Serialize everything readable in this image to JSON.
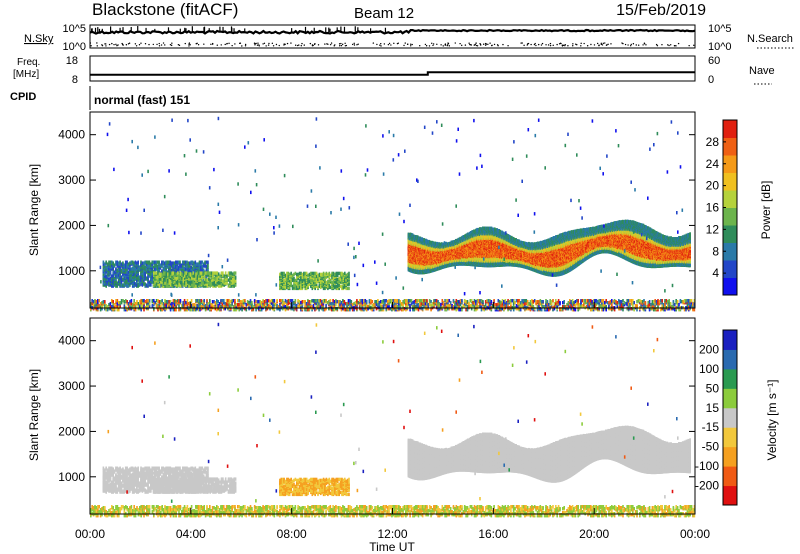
{
  "header": {
    "station": "Blackstone (fitACF)",
    "beam": "Beam 12",
    "date": "15/Feb/2019"
  },
  "status_panels": {
    "nsky_label": "N.Sky",
    "nsearch_label": "N.Search",
    "freq_label_line1": "Freq.",
    "freq_label_line2": "[MHz]",
    "nave_label": "Nave",
    "cpid_label": "CPID",
    "cpid_value": "normal (fast) 151",
    "noise_ticks_left": [
      "10^5",
      "10^0"
    ],
    "noise_ticks_right": [
      "10^5",
      "10^0"
    ],
    "freq_ticks": [
      "18",
      "8"
    ],
    "nave_ticks": [
      "60",
      "0"
    ],
    "freq_step_time_hours": 13.4,
    "freq_mhz": 10.5,
    "freq_after_mhz": 11.5
  },
  "chart_data": [
    {
      "type": "heatmap",
      "parameter": "power",
      "ylabel": "Slant Range [km]",
      "yticks": [
        "1000",
        "2000",
        "3000",
        "4000"
      ],
      "ylim": [
        180,
        4500
      ],
      "xlim": [
        0,
        24
      ],
      "colorbar": {
        "label": "Power [dB]",
        "ticks": [
          "4",
          "8",
          "12",
          "16",
          "20",
          "24",
          "28"
        ],
        "range": [
          0,
          32
        ],
        "colors": [
          "#1010ee",
          "#2246c8",
          "#2a7aa8",
          "#2f8c5a",
          "#6cb44c",
          "#b5d23c",
          "#f0c020",
          "#f59a18",
          "#ef6014",
          "#e02010"
        ]
      },
      "scatter_regions": [
        {
          "t0": 0.5,
          "t1": 4.7,
          "r0": 700,
          "r1": 1250,
          "level": "low"
        },
        {
          "t0": 2.5,
          "t1": 5.8,
          "r0": 700,
          "r1": 1000,
          "level": "mid"
        },
        {
          "t0": 7.5,
          "t1": 10.3,
          "r0": 650,
          "r1": 1000,
          "level": "mid"
        },
        {
          "t0": 12.6,
          "t1": 23.8,
          "r0": 1050,
          "r1": 2250,
          "level": "high"
        },
        {
          "t0": 0.0,
          "t1": 24.0,
          "r0": 180,
          "r1": 400,
          "level": "ground"
        }
      ]
    },
    {
      "type": "heatmap",
      "parameter": "velocity",
      "xlabel": "Time UT",
      "ylabel": "Slant Range [km]",
      "yticks": [
        "1000",
        "2000",
        "3000",
        "4000"
      ],
      "xticks": [
        "00:00",
        "04:00",
        "08:00",
        "12:00",
        "16:00",
        "20:00",
        "00:00"
      ],
      "ylim": [
        180,
        4500
      ],
      "xlim": [
        0,
        24
      ],
      "colorbar": {
        "label": "Velocity [m s⁻¹]",
        "ticks": [
          "-200",
          "-100",
          "-50",
          "-15",
          "15",
          "50",
          "100",
          "200"
        ],
        "colors": [
          "#e01010",
          "#f05a14",
          "#f5a020",
          "#f2c83c",
          "#c8c8c8",
          "#8ccc3c",
          "#2a9a50",
          "#2a6ab0",
          "#1a20c0"
        ]
      },
      "ground_scatter_color": "#c8c8c8"
    }
  ]
}
